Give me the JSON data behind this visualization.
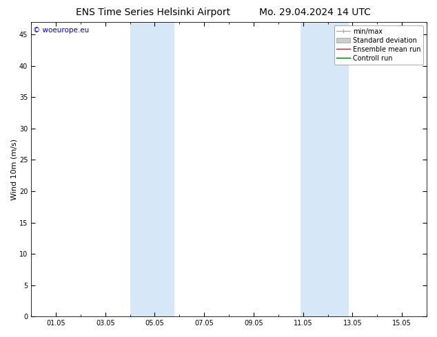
{
  "title_left": "ENS Time Series Helsinki Airport",
  "title_right": "Mo. 29.04.2024 14 UTC",
  "ylabel": "Wind 10m (m/s)",
  "watermark": "© woeurope.eu",
  "ylim": [
    0,
    47
  ],
  "yticks": [
    0,
    5,
    10,
    15,
    20,
    25,
    30,
    35,
    40,
    45
  ],
  "xtick_labels": [
    "01.05",
    "03.05",
    "05.05",
    "07.05",
    "09.05",
    "11.05",
    "13.05",
    "15.05"
  ],
  "xtick_positions": [
    1,
    3,
    5,
    7,
    9,
    11,
    13,
    15
  ],
  "xminor_positions": [
    0,
    2,
    4,
    6,
    8,
    10,
    12,
    14,
    16
  ],
  "shaded_bands": [
    {
      "x_start": 4.0,
      "x_end": 5.8
    },
    {
      "x_start": 10.9,
      "x_end": 12.85
    }
  ],
  "shade_color": "#d6e8f7",
  "background_color": "#ffffff",
  "legend_entries": [
    {
      "label": "min/max",
      "color": "#aaaaaa"
    },
    {
      "label": "Standard deviation",
      "color": "#cccccc"
    },
    {
      "label": "Ensemble mean run",
      "color": "#ff0000"
    },
    {
      "label": "Controll run",
      "color": "#006600"
    }
  ],
  "watermark_color": "#0000cc",
  "title_fontsize": 10,
  "tick_fontsize": 7,
  "ylabel_fontsize": 8,
  "legend_fontsize": 7
}
